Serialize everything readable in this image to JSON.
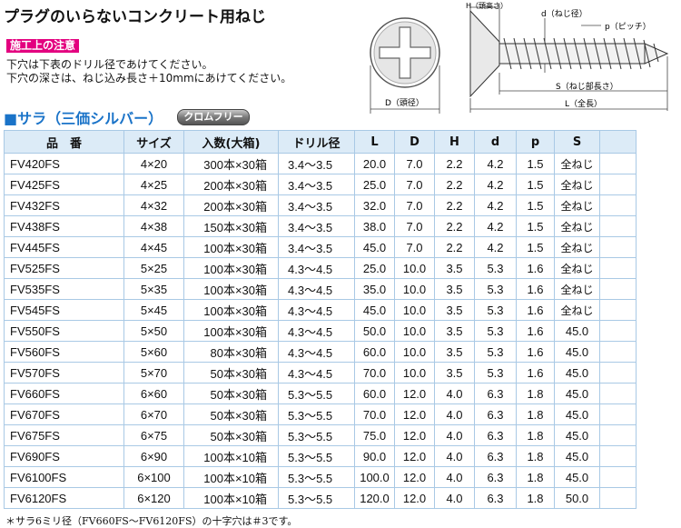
{
  "header": {
    "title": "プラグのいらないコンクリート用ねじ",
    "caution_label": "施工上の注意",
    "notes": [
      "下穴は下表のドリル径であけてください。",
      "下穴の深さは、ねじ込み長さ＋10mmにあけてください。"
    ]
  },
  "diagram": {
    "head_label": "D（頭径）",
    "h_label": "H（頭高さ）",
    "d_label": "d（ねじ径）",
    "p_label": "p（ピッチ）",
    "s_label": "S（ねじ部長さ）",
    "l_label": "L（全長）"
  },
  "section": {
    "title": "■サラ（三価シルバー）",
    "badge": "クロムフリー"
  },
  "table": {
    "headers": [
      "品　番",
      "サイズ",
      "入数(大箱)",
      "ドリル径",
      "L",
      "D",
      "H",
      "d",
      "p",
      "S"
    ],
    "rows": [
      [
        "FV420FS",
        "4×20",
        "300本×30箱",
        "3.4～3.5",
        "20.0",
        "7.0",
        "2.2",
        "4.2",
        "1.5",
        "全ねじ"
      ],
      [
        "FV425FS",
        "4×25",
        "200本×30箱",
        "3.4～3.5",
        "25.0",
        "7.0",
        "2.2",
        "4.2",
        "1.5",
        "全ねじ"
      ],
      [
        "FV432FS",
        "4×32",
        "200本×30箱",
        "3.4～3.5",
        "32.0",
        "7.0",
        "2.2",
        "4.2",
        "1.5",
        "全ねじ"
      ],
      [
        "FV438FS",
        "4×38",
        "150本×30箱",
        "3.4～3.5",
        "38.0",
        "7.0",
        "2.2",
        "4.2",
        "1.5",
        "全ねじ"
      ],
      [
        "FV445FS",
        "4×45",
        "100本×30箱",
        "3.4～3.5",
        "45.0",
        "7.0",
        "2.2",
        "4.2",
        "1.5",
        "全ねじ"
      ],
      [
        "FV525FS",
        "5×25",
        "100本×30箱",
        "4.3～4.5",
        "25.0",
        "10.0",
        "3.5",
        "5.3",
        "1.6",
        "全ねじ"
      ],
      [
        "FV535FS",
        "5×35",
        "100本×30箱",
        "4.3～4.5",
        "35.0",
        "10.0",
        "3.5",
        "5.3",
        "1.6",
        "全ねじ"
      ],
      [
        "FV545FS",
        "5×45",
        "100本×30箱",
        "4.3～4.5",
        "45.0",
        "10.0",
        "3.5",
        "5.3",
        "1.6",
        "全ねじ"
      ],
      [
        "FV550FS",
        "5×50",
        "100本×30箱",
        "4.3～4.5",
        "50.0",
        "10.0",
        "3.5",
        "5.3",
        "1.6",
        "45.0"
      ],
      [
        "FV560FS",
        "5×60",
        "80本×30箱",
        "4.3～4.5",
        "60.0",
        "10.0",
        "3.5",
        "5.3",
        "1.6",
        "45.0"
      ],
      [
        "FV570FS",
        "5×70",
        "50本×30箱",
        "4.3～4.5",
        "70.0",
        "10.0",
        "3.5",
        "5.3",
        "1.6",
        "45.0"
      ],
      [
        "FV660FS",
        "6×60",
        "50本×30箱",
        "5.3～5.5",
        "60.0",
        "12.0",
        "4.0",
        "6.3",
        "1.8",
        "45.0"
      ],
      [
        "FV670FS",
        "6×70",
        "50本×30箱",
        "5.3～5.5",
        "70.0",
        "12.0",
        "4.0",
        "6.3",
        "1.8",
        "45.0"
      ],
      [
        "FV675FS",
        "6×75",
        "50本×30箱",
        "5.3～5.5",
        "75.0",
        "12.0",
        "4.0",
        "6.3",
        "1.8",
        "45.0"
      ],
      [
        "FV690FS",
        "6×90",
        "100本×10箱",
        "5.3～5.5",
        "90.0",
        "12.0",
        "4.0",
        "6.3",
        "1.8",
        "45.0"
      ],
      [
        "FV6100FS",
        "6×100",
        "100本×10箱",
        "5.3～5.5",
        "100.0",
        "12.0",
        "4.0",
        "6.3",
        "1.8",
        "45.0"
      ],
      [
        "FV6120FS",
        "6×120",
        "100本×10箱",
        "5.3～5.5",
        "120.0",
        "12.0",
        "4.0",
        "6.3",
        "1.8",
        "50.0"
      ]
    ]
  },
  "footnote": "＊サラ6ミリ径（FV660FS～FV6120FS）の十字穴は＃3です。",
  "colors": {
    "accent_blue": "#1a73c8",
    "caution_pink": "#e3007f",
    "header_bg": "#dcebf7",
    "grid": "#a9c9e5"
  }
}
